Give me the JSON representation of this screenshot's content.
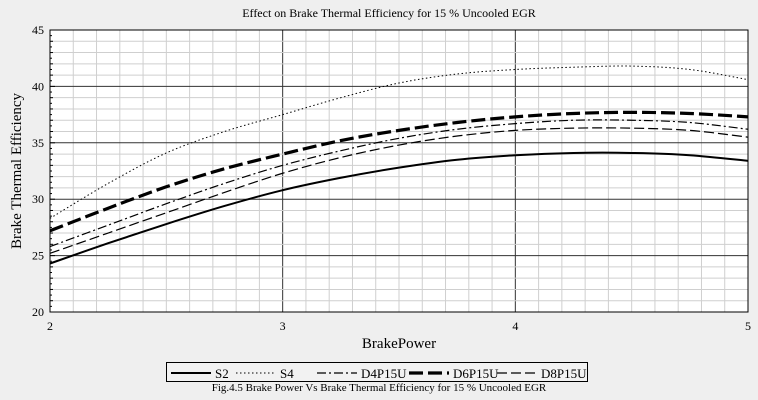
{
  "chart_data": {
    "type": "line",
    "title": "Effect on Brake Thermal Efficiency for 15 % Uncooled EGR",
    "xlabel": "BrakePower",
    "ylabel": "Brake Thermal Efficiency",
    "xlim": [
      2,
      5
    ],
    "ylim": [
      20,
      45
    ],
    "xticks": [
      "2",
      "3",
      "4",
      "5"
    ],
    "yticks": [
      "20",
      "25",
      "30",
      "35",
      "40",
      "45"
    ],
    "grid": true,
    "legend_position": "bottom",
    "x": [
      2.0,
      2.25,
      2.5,
      2.75,
      3.0,
      3.25,
      3.5,
      3.75,
      4.0,
      4.25,
      4.5,
      4.75,
      5.0
    ],
    "series": [
      {
        "name": "S2",
        "style": "solid-thin",
        "values": [
          24.3,
          26.1,
          27.8,
          29.4,
          30.8,
          31.9,
          32.8,
          33.5,
          33.9,
          34.1,
          34.1,
          33.9,
          33.4
        ]
      },
      {
        "name": "S4",
        "style": "dotted",
        "values": [
          28.3,
          31.4,
          34.1,
          36.0,
          37.5,
          39.0,
          40.3,
          41.1,
          41.5,
          41.7,
          41.8,
          41.5,
          40.6
        ]
      },
      {
        "name": "D4P15U",
        "style": "dashdot",
        "values": [
          25.8,
          27.7,
          29.6,
          31.4,
          33.0,
          34.3,
          35.4,
          36.2,
          36.7,
          37.0,
          37.0,
          36.8,
          36.2
        ]
      },
      {
        "name": "D6P15U",
        "style": "dash-thick",
        "values": [
          27.2,
          29.2,
          31.1,
          32.7,
          34.0,
          35.2,
          36.1,
          36.8,
          37.3,
          37.6,
          37.7,
          37.6,
          37.3
        ]
      },
      {
        "name": "D8P15U",
        "style": "dash",
        "values": [
          25.2,
          27.0,
          28.8,
          30.6,
          32.3,
          33.7,
          34.8,
          35.6,
          36.1,
          36.3,
          36.3,
          36.1,
          35.5
        ]
      }
    ]
  },
  "caption": "Fig.4.5 Brake Power Vs Brake Thermal Efficiency  for 15 % Uncooled EGR"
}
